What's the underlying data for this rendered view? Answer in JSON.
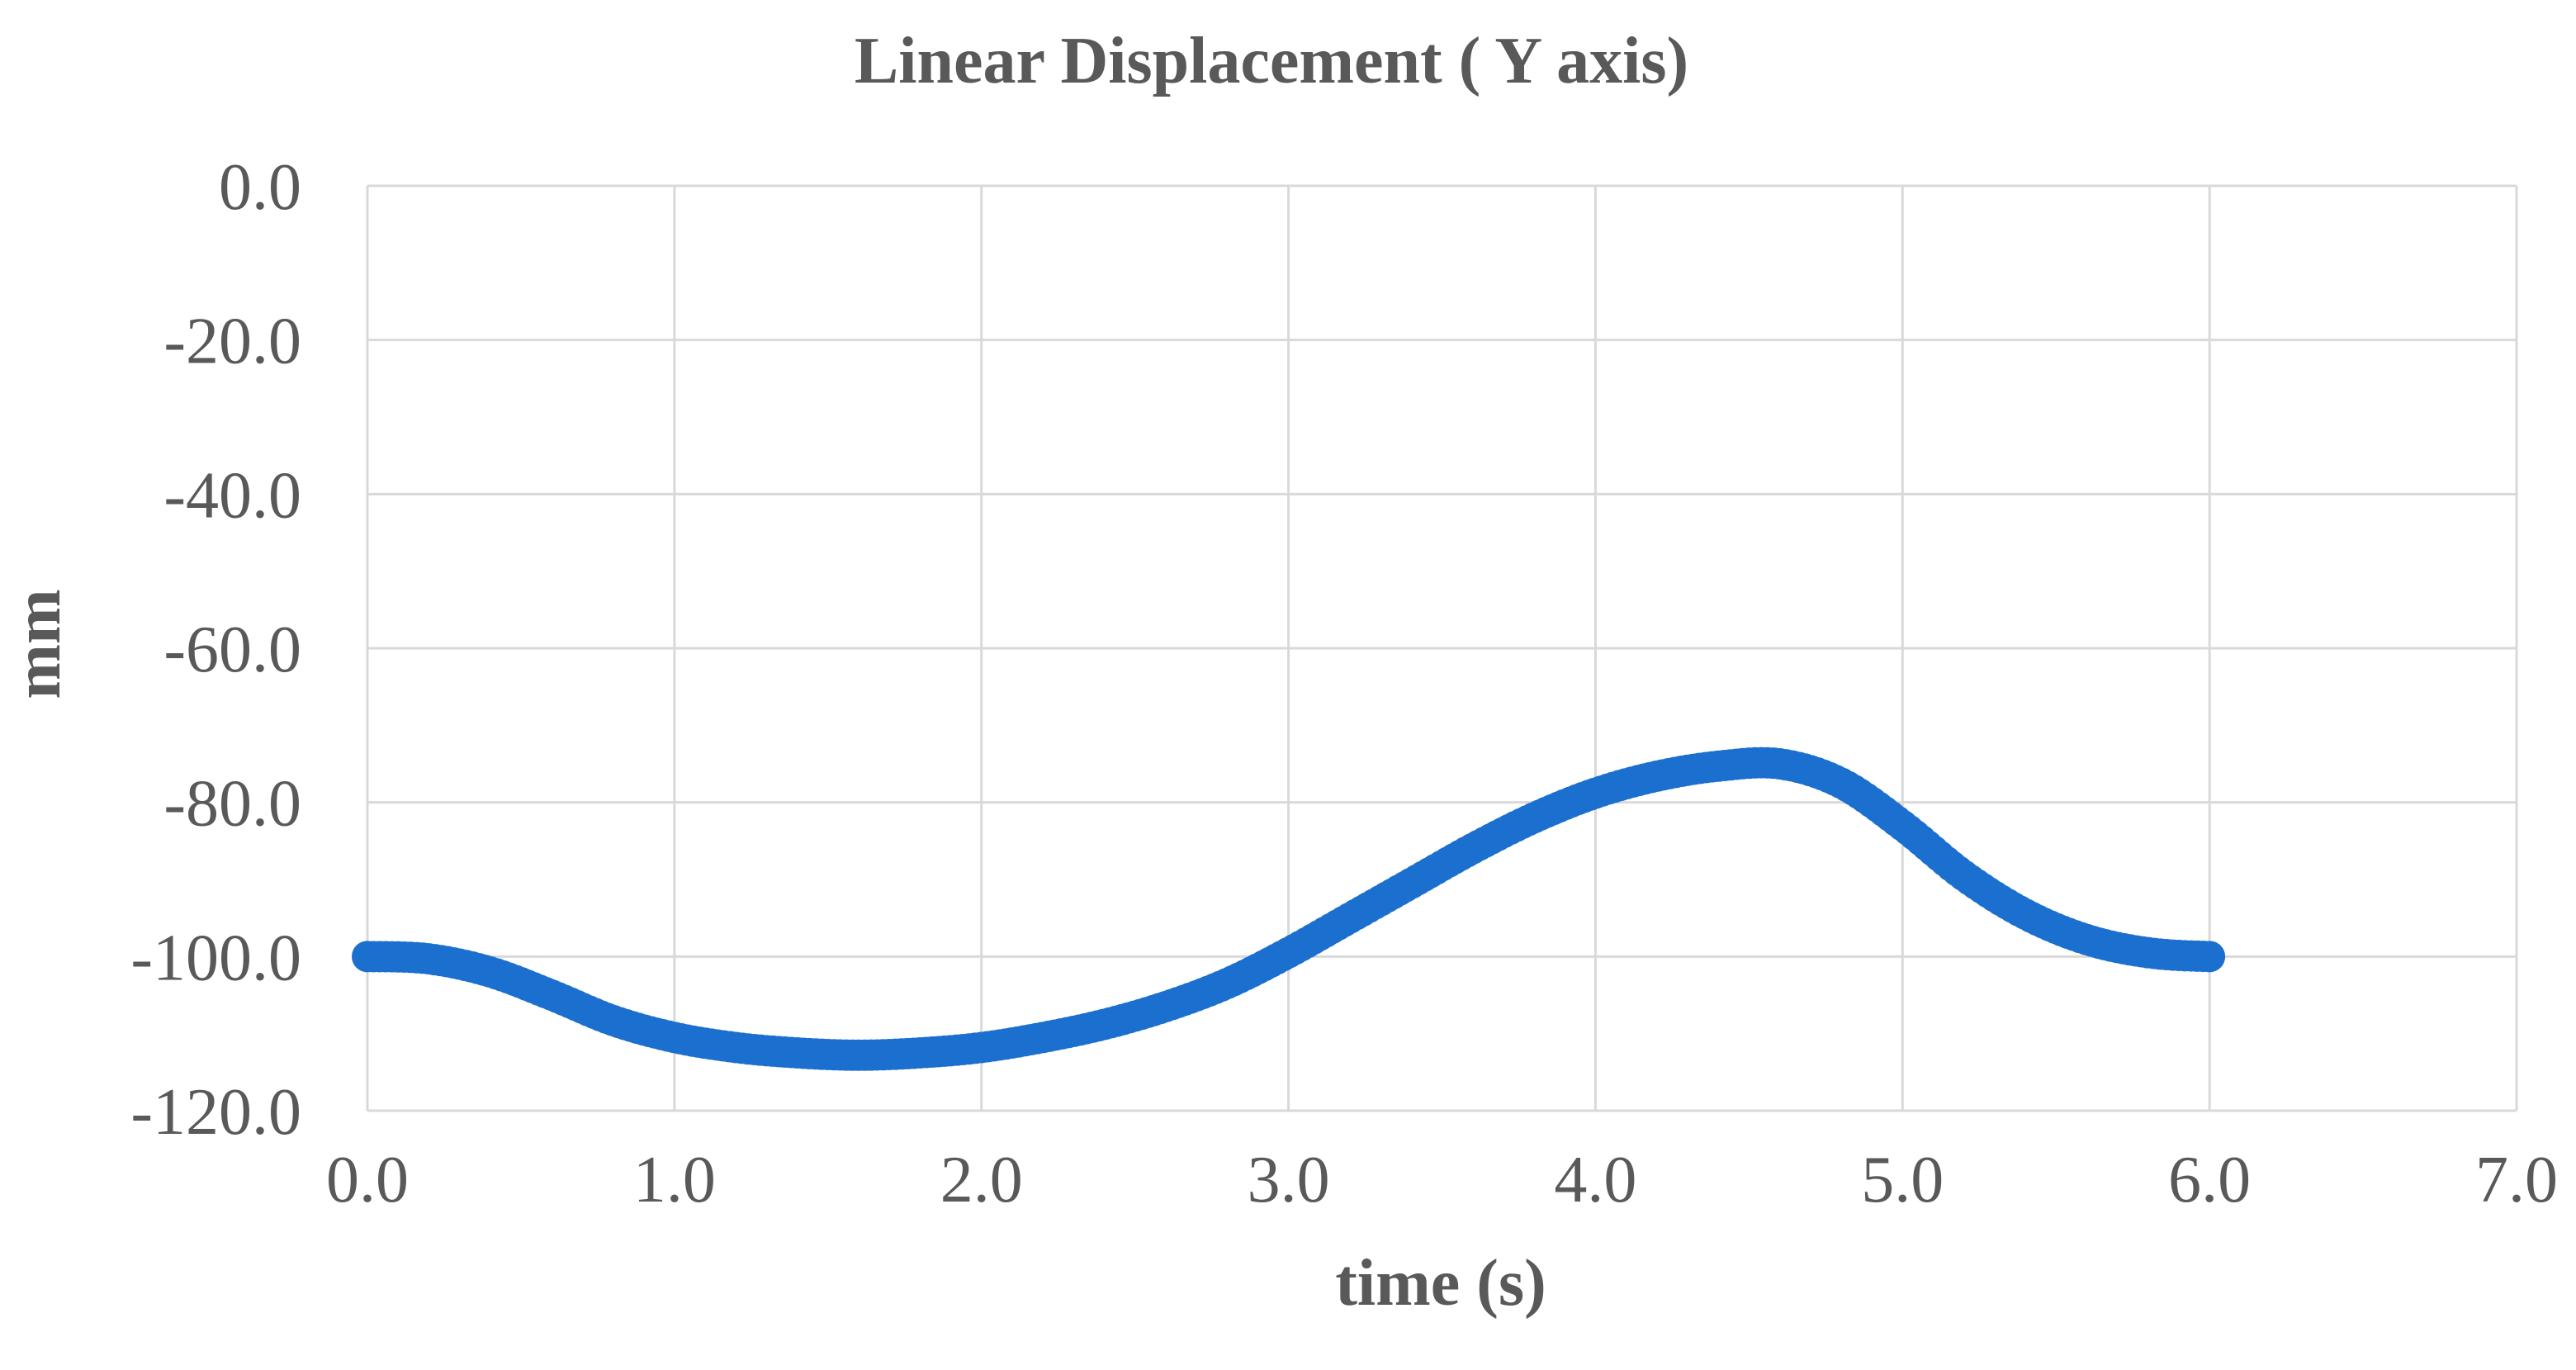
{
  "chart_data": {
    "type": "scatter",
    "title": "Linear Displacement ( Y axis)",
    "xlabel": "time (s)",
    "ylabel": "mm",
    "xlim": [
      0.0,
      7.0
    ],
    "ylim": [
      -120.0,
      0.0
    ],
    "x_ticks": [
      "0.0",
      "1.0",
      "2.0",
      "3.0",
      "4.0",
      "5.0",
      "6.0",
      "7.0"
    ],
    "y_ticks": [
      "0.0",
      "-20.0",
      "-40.0",
      "-60.0",
      "-80.0",
      "-100.0",
      "-120.0"
    ],
    "grid": true,
    "marker_color": "#1a6fcf",
    "series": [
      {
        "x": [
          0.0,
          0.2,
          0.4,
          0.6,
          0.8,
          1.0,
          1.2,
          1.4,
          1.6,
          1.8,
          2.0,
          2.2,
          2.4,
          2.6,
          2.8,
          3.0,
          3.2,
          3.4,
          3.6,
          3.8,
          4.0,
          4.2,
          4.4,
          4.6,
          4.8,
          5.0,
          5.2,
          5.4,
          5.6,
          5.8,
          6.0
        ],
        "values": [
          -100.0,
          -100.3,
          -102.0,
          -105.0,
          -108.3,
          -110.5,
          -111.8,
          -112.5,
          -112.8,
          -112.5,
          -111.8,
          -110.5,
          -108.8,
          -106.5,
          -103.5,
          -99.5,
          -95.0,
          -90.5,
          -86.0,
          -82.0,
          -78.8,
          -76.6,
          -75.3,
          -75.0,
          -77.5,
          -83.0,
          -89.5,
          -94.5,
          -97.8,
          -99.5,
          -100.0
        ]
      }
    ]
  }
}
